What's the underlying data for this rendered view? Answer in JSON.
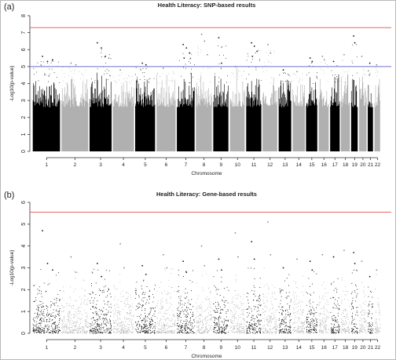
{
  "panels": [
    {
      "tag": "(a)"
    },
    {
      "tag": "(b)"
    }
  ],
  "chart_data": [
    {
      "type": "scatter",
      "title": "Health Literacy: SNP-based results",
      "xlabel": "Chromosome",
      "ylabel": "-Log10(p-value)",
      "ylim": [
        0,
        8
      ],
      "yticks": [
        0,
        1,
        2,
        3,
        4,
        5,
        6,
        7,
        8
      ],
      "grid": false,
      "x_categories": [
        "1",
        "2",
        "3",
        "4",
        "5",
        "6",
        "7",
        "8",
        "9",
        "10",
        "11",
        "12",
        "13",
        "14",
        "15",
        "16",
        "17",
        "18",
        "19",
        "20",
        "21",
        "22"
      ],
      "thresholds": [
        {
          "value": 7.3,
          "color": "#e8524f"
        },
        {
          "value": 5.0,
          "color": "#6f6fd0"
        }
      ],
      "series_colors": [
        "#000000",
        "#b0b0b0"
      ],
      "series": [
        {
          "chromosome": "1",
          "max": 5.6,
          "tops": [
            5.6,
            5.3,
            5.4
          ]
        },
        {
          "chromosome": "2",
          "max": 5.2,
          "tops": [
            5.2,
            5.1
          ]
        },
        {
          "chromosome": "3",
          "max": 6.4,
          "tops": [
            6.4,
            6.1,
            5.6
          ]
        },
        {
          "chromosome": "4",
          "max": 4.8,
          "tops": [
            4.8
          ]
        },
        {
          "chromosome": "5",
          "max": 5.2,
          "tops": [
            5.2,
            5.1
          ]
        },
        {
          "chromosome": "6",
          "max": 4.9,
          "tops": [
            4.9
          ]
        },
        {
          "chromosome": "7",
          "max": 6.3,
          "tops": [
            6.3,
            6.1,
            5.8,
            5.5
          ]
        },
        {
          "chromosome": "8",
          "max": 6.9,
          "tops": [
            6.9,
            6.5,
            5.7
          ]
        },
        {
          "chromosome": "9",
          "max": 6.7,
          "tops": [
            6.7,
            5.2
          ]
        },
        {
          "chromosome": "10",
          "max": 5.0,
          "tops": [
            5.0
          ]
        },
        {
          "chromosome": "11",
          "max": 6.4,
          "tops": [
            6.4,
            6.2,
            5.9,
            5.6
          ]
        },
        {
          "chromosome": "12",
          "max": 6.3,
          "tops": [
            6.3,
            5.8
          ]
        },
        {
          "chromosome": "13",
          "max": 4.8,
          "tops": [
            4.8
          ]
        },
        {
          "chromosome": "14",
          "max": 4.7,
          "tops": [
            4.7
          ]
        },
        {
          "chromosome": "15",
          "max": 5.5,
          "tops": [
            5.5,
            5.3
          ]
        },
        {
          "chromosome": "16",
          "max": 5.6,
          "tops": [
            5.6,
            5.4
          ]
        },
        {
          "chromosome": "17",
          "max": 5.3,
          "tops": [
            5.3
          ]
        },
        {
          "chromosome": "18",
          "max": 5.7,
          "tops": [
            5.7
          ]
        },
        {
          "chromosome": "19",
          "max": 6.8,
          "tops": [
            6.8,
            6.4
          ]
        },
        {
          "chromosome": "20",
          "max": 5.6,
          "tops": [
            5.6
          ]
        },
        {
          "chromosome": "21",
          "max": 5.2,
          "tops": [
            5.2
          ]
        },
        {
          "chromosome": "22",
          "max": 5.1,
          "tops": [
            5.1
          ]
        }
      ]
    },
    {
      "type": "scatter",
      "title": "Health Literacy: Gene-based results",
      "xlabel": "Chromosome",
      "ylabel": "-Log10(p-value)",
      "ylim": [
        0,
        6
      ],
      "yticks": [
        0,
        1,
        2,
        3,
        4,
        5,
        6
      ],
      "grid": false,
      "x_categories": [
        "1",
        "2",
        "3",
        "4",
        "5",
        "6",
        "7",
        "8",
        "9",
        "10",
        "11",
        "12",
        "13",
        "14",
        "15",
        "16",
        "17",
        "18",
        "19",
        "20",
        "21",
        "22"
      ],
      "thresholds": [
        {
          "value": 5.55,
          "color": "#e8524f"
        }
      ],
      "series_colors": [
        "#000000",
        "#b0b0b0"
      ],
      "series": [
        {
          "chromosome": "1",
          "max": 4.7,
          "tops": [
            4.7,
            3.2,
            2.9
          ]
        },
        {
          "chromosome": "2",
          "max": 3.5,
          "tops": [
            3.5,
            2.8
          ]
        },
        {
          "chromosome": "3",
          "max": 3.2,
          "tops": [
            3.2,
            2.6
          ]
        },
        {
          "chromosome": "4",
          "max": 4.1,
          "tops": [
            4.1,
            3.0
          ]
        },
        {
          "chromosome": "5",
          "max": 3.1,
          "tops": [
            3.1,
            2.7
          ]
        },
        {
          "chromosome": "6",
          "max": 3.6,
          "tops": [
            3.6,
            3.0
          ]
        },
        {
          "chromosome": "7",
          "max": 3.3,
          "tops": [
            3.3,
            2.8
          ]
        },
        {
          "chromosome": "8",
          "max": 4.0,
          "tops": [
            4.0,
            3.1
          ]
        },
        {
          "chromosome": "9",
          "max": 3.4,
          "tops": [
            3.4,
            2.9
          ]
        },
        {
          "chromosome": "10",
          "max": 4.6,
          "tops": [
            4.6,
            3.5
          ]
        },
        {
          "chromosome": "11",
          "max": 4.2,
          "tops": [
            4.2,
            3.4
          ]
        },
        {
          "chromosome": "12",
          "max": 5.1,
          "tops": [
            5.1,
            3.6
          ]
        },
        {
          "chromosome": "13",
          "max": 3.0,
          "tops": [
            3.0
          ]
        },
        {
          "chromosome": "14",
          "max": 3.4,
          "tops": [
            3.4
          ]
        },
        {
          "chromosome": "15",
          "max": 3.3,
          "tops": [
            3.3,
            2.9
          ]
        },
        {
          "chromosome": "16",
          "max": 3.6,
          "tops": [
            3.6
          ]
        },
        {
          "chromosome": "17",
          "max": 3.5,
          "tops": [
            3.5
          ]
        },
        {
          "chromosome": "18",
          "max": 3.8,
          "tops": [
            3.8
          ]
        },
        {
          "chromosome": "19",
          "max": 3.7,
          "tops": [
            3.7,
            3.2
          ]
        },
        {
          "chromosome": "20",
          "max": 3.3,
          "tops": [
            3.3
          ]
        },
        {
          "chromosome": "21",
          "max": 2.6,
          "tops": [
            2.6
          ]
        },
        {
          "chromosome": "22",
          "max": 2.9,
          "tops": [
            2.9
          ]
        }
      ]
    }
  ]
}
